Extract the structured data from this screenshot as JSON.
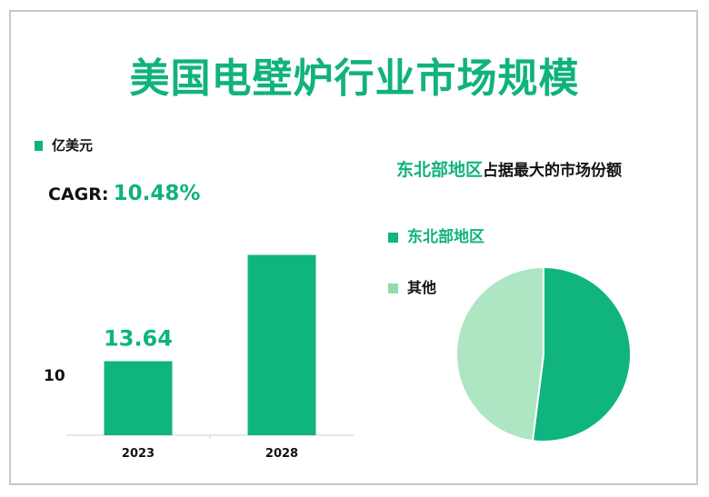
{
  "title": "美国电壁炉行业市场规模",
  "colors": {
    "primary": "#0fb47e",
    "secondary": "#aee5c3",
    "title": "#10b37a"
  },
  "bar_chart": {
    "legend": "亿美元",
    "cagr_label": "CAGR:",
    "cagr_value": "10.48%",
    "y_tick_label": "10"
  },
  "pie_chart": {
    "title_highlight": "东北部地区",
    "title_rest": "占据最大的市场份额",
    "legend": [
      "东北部地区",
      "其他"
    ]
  },
  "chart_data": [
    {
      "type": "bar",
      "categories": [
        "2023",
        "2028"
      ],
      "values": [
        13.64,
        22.45
      ],
      "data_labels": [
        "13.64",
        ""
      ],
      "ylim": [
        7.5,
        24
      ],
      "yticks": [
        "10"
      ],
      "legend": "亿美元",
      "legend_position": "top-left",
      "grid": false
    },
    {
      "type": "pie",
      "labels": [
        "东北部地区",
        "其他"
      ],
      "values": [
        52,
        48
      ],
      "colors": [
        "#0fb47e",
        "#aee5c3"
      ],
      "legend_position": "left"
    }
  ]
}
